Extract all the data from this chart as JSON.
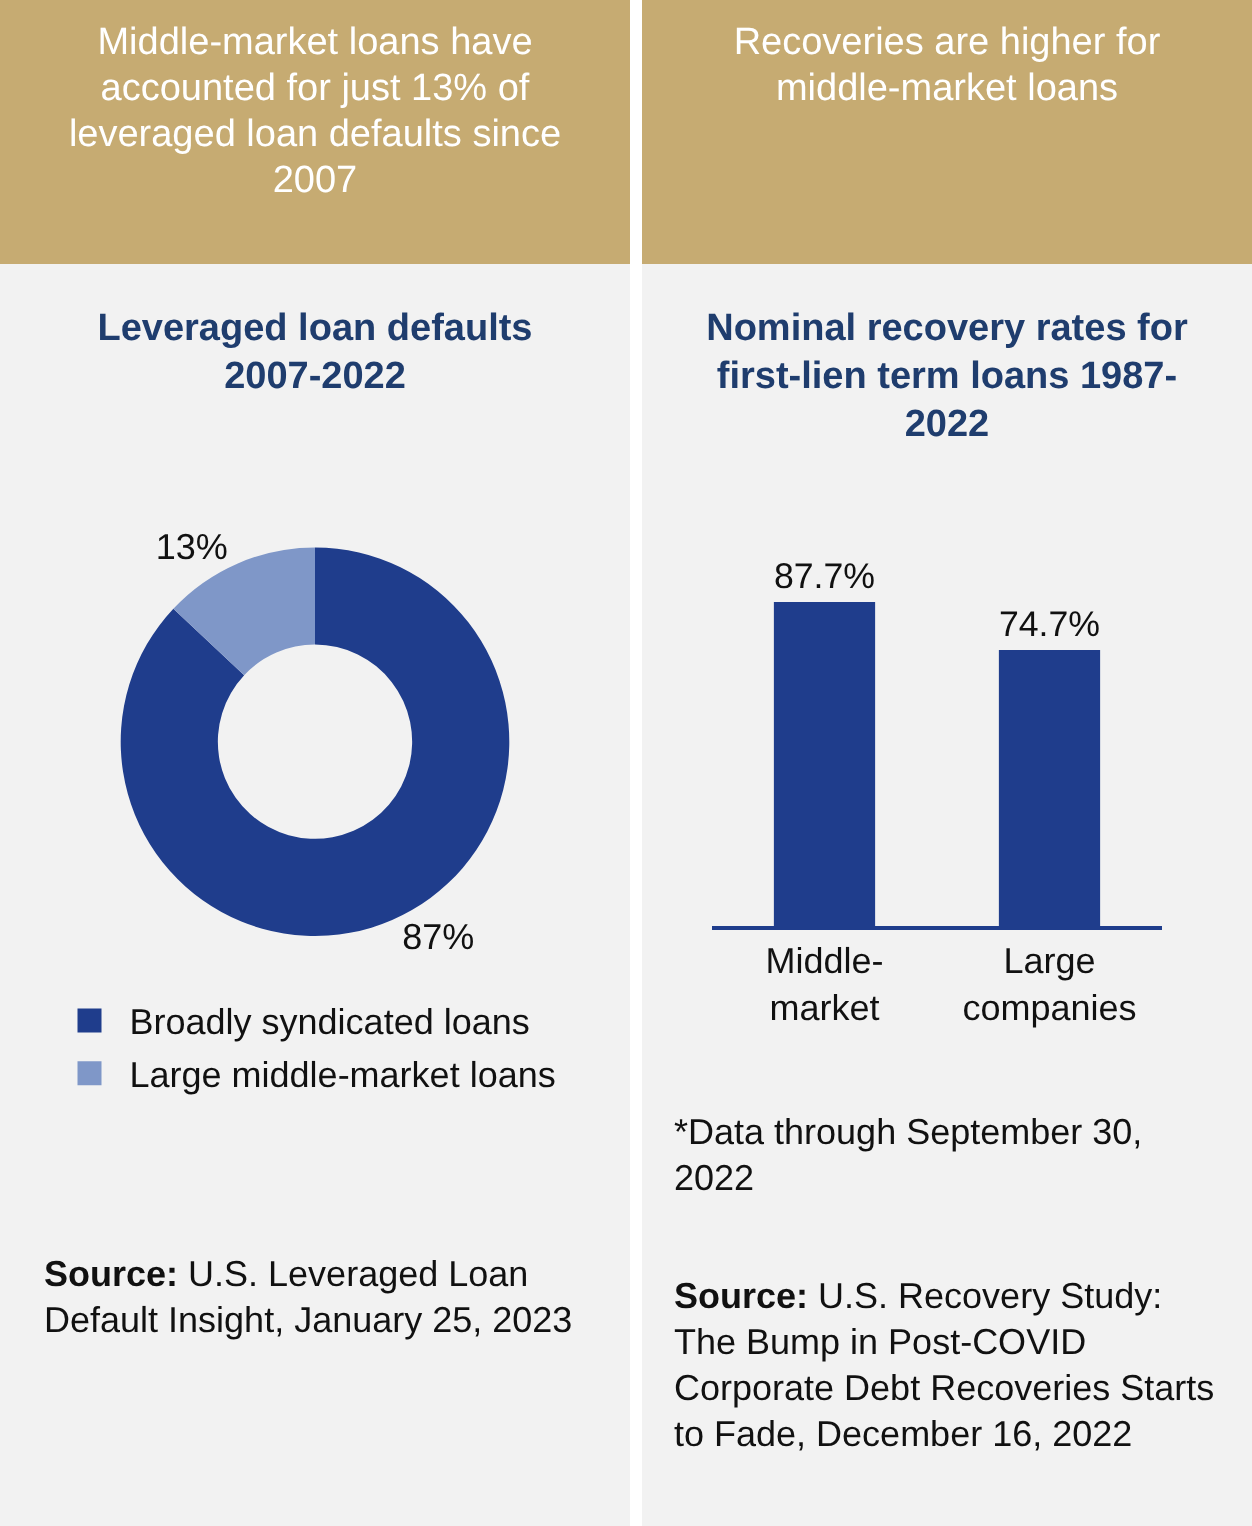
{
  "chart_data": [
    {
      "type": "donut",
      "title": "Middle-market loans have accounted for just 13% of leveraged loan defaults since 2007",
      "subtitle": "Leveraged loan defaults 2007-2022",
      "categories": [
        "Broadly syndicated loans",
        "Large middle-market loans"
      ],
      "values": [
        87,
        13
      ],
      "colors": [
        "#1f3d8c",
        "#7f97c8"
      ],
      "value_labels": [
        "87%",
        "13%"
      ],
      "legend": "bottom",
      "annotations": [
        "Source: U.S. Leveraged Loan Default Insight, January 25, 2023"
      ]
    },
    {
      "type": "bar",
      "title": "Recoveries are higher for middle-market loans",
      "subtitle": "Nominal recovery rates for first-lien term loans 1987-2022",
      "categories": [
        "Middle-market",
        "Large companies"
      ],
      "values": [
        87.7,
        74.7
      ],
      "color": "#1f3d8c",
      "value_labels": [
        "87.7%",
        "74.7%"
      ],
      "annotations": [
        "*Data through September 30, 2022",
        "Source: U.S. Recovery Study: The Bump in Post-COVID Corporate Debt Recoveries Starts to Fade, December 16, 2022"
      ]
    }
  ]
}
